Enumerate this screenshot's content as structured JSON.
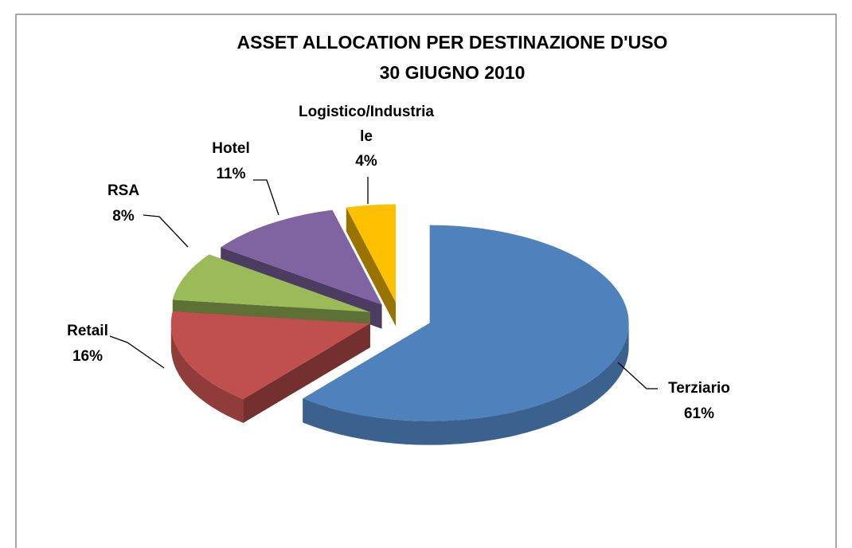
{
  "chart_data": {
    "type": "pie",
    "title": "ASSET ALLOCATION PER DESTINAZIONE D'USO",
    "subtitle": "30 GIUGNO 2010",
    "categories": [
      "Terziario",
      "Retail",
      "RSA",
      "Hotel",
      "Logistico/Industriale"
    ],
    "values": [
      61,
      16,
      8,
      11,
      4
    ],
    "value_labels": [
      "61%",
      "16%",
      "8%",
      "11%",
      "4%"
    ],
    "colors": [
      "#4f81bd",
      "#c0504d",
      "#9bbb59",
      "#8064a2",
      "#ffc000"
    ]
  }
}
